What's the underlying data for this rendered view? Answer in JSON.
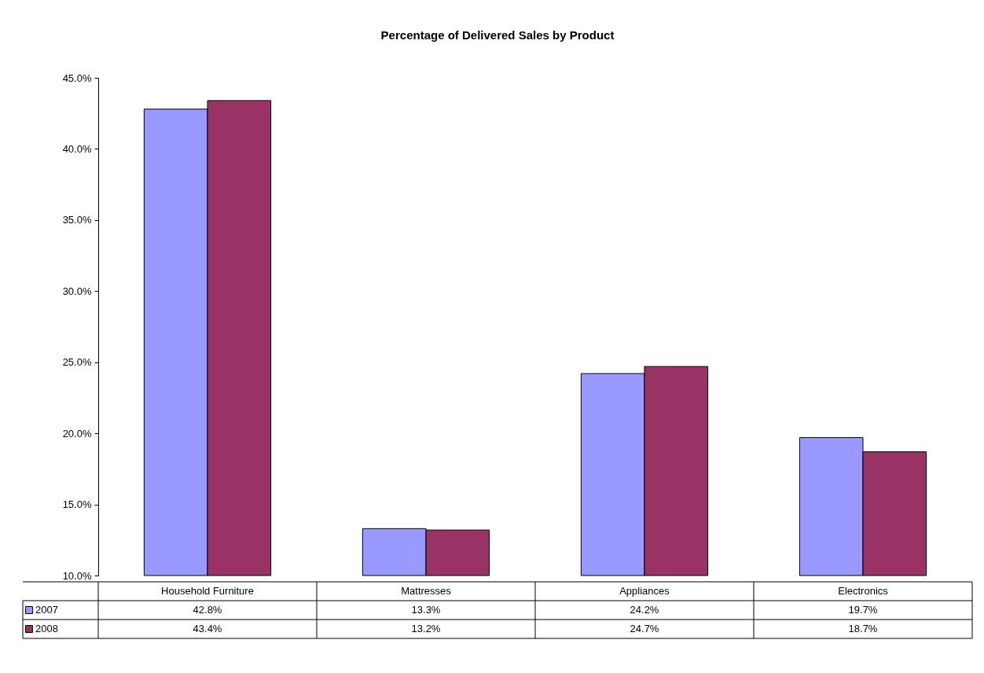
{
  "chart_data": {
    "type": "bar",
    "title": "Percentage of Delivered Sales by Product",
    "categories": [
      "Household Furniture",
      "Mattresses",
      "Appliances",
      "Electronics"
    ],
    "series": [
      {
        "name": "2007",
        "color": "#9999ff",
        "values": [
          42.8,
          13.3,
          24.2,
          19.7
        ],
        "value_labels": [
          "42.8%",
          "13.3%",
          "24.2%",
          "19.7%"
        ]
      },
      {
        "name": "2008",
        "color": "#993366",
        "values": [
          43.4,
          13.2,
          24.7,
          18.7
        ],
        "value_labels": [
          "43.4%",
          "13.2%",
          "24.7%",
          "18.7%"
        ]
      }
    ],
    "ylim": [
      10,
      45
    ],
    "yticks": [
      {
        "value": 10,
        "label": "10.0%"
      },
      {
        "value": 15,
        "label": "15.0%"
      },
      {
        "value": 20,
        "label": "20.0%"
      },
      {
        "value": 25,
        "label": "25.0%"
      },
      {
        "value": 30,
        "label": "30.0%"
      },
      {
        "value": 35,
        "label": "35.0%"
      },
      {
        "value": 40,
        "label": "40.0%"
      },
      {
        "value": 45,
        "label": "45.0%"
      }
    ],
    "grid": false,
    "legend": "bottom"
  }
}
